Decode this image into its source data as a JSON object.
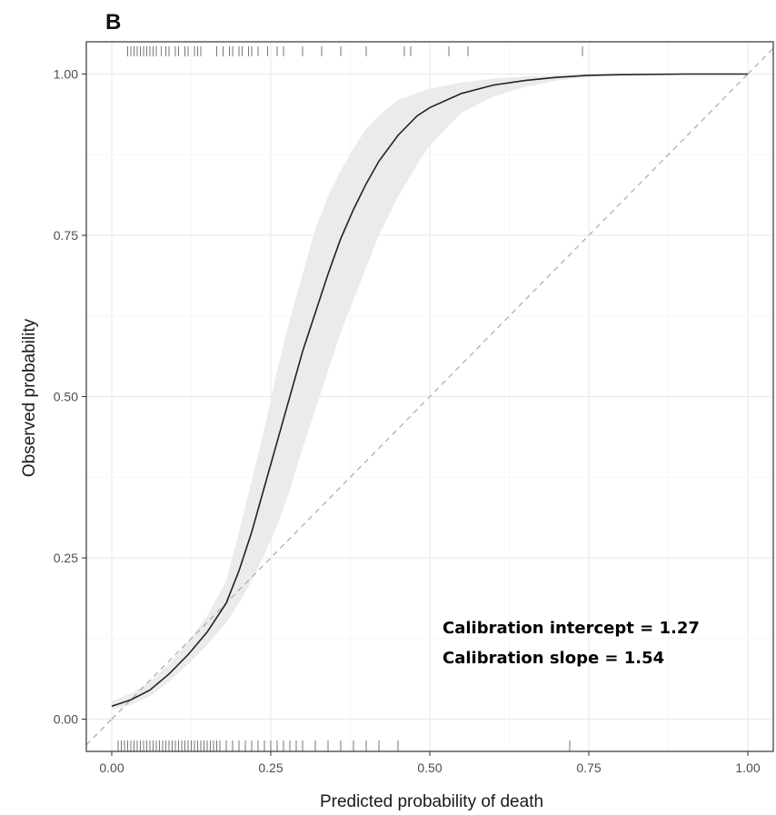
{
  "panel_label": "B",
  "chart_data": {
    "type": "line",
    "xlabel": "Predicted probability of death",
    "ylabel": "Observed probability",
    "xlim": [
      -0.04,
      1.04
    ],
    "ylim": [
      -0.05,
      1.05
    ],
    "x_ticks": [
      0,
      0.25,
      0.5,
      0.75,
      1.0
    ],
    "x_tick_labels": [
      "0.00",
      "0.25",
      "0.50",
      "0.75",
      "1.00"
    ],
    "y_ticks": [
      0,
      0.25,
      0.5,
      0.75,
      1.0
    ],
    "y_tick_labels": [
      "0.00",
      "0.25",
      "0.50",
      "0.75",
      "1.00"
    ],
    "grid": true,
    "reference_line": {
      "from": [
        0,
        0
      ],
      "to": [
        1,
        1
      ],
      "style": "dashed",
      "color": "#aaaaaa"
    },
    "calibration_curve": {
      "x": [
        0,
        0.03,
        0.06,
        0.09,
        0.12,
        0.15,
        0.18,
        0.2,
        0.22,
        0.24,
        0.26,
        0.28,
        0.3,
        0.32,
        0.34,
        0.36,
        0.38,
        0.4,
        0.42,
        0.45,
        0.48,
        0.5,
        0.55,
        0.6,
        0.65,
        0.7,
        0.75,
        0.8,
        0.9,
        1.0
      ],
      "y": [
        0.02,
        0.03,
        0.045,
        0.07,
        0.1,
        0.135,
        0.18,
        0.23,
        0.29,
        0.36,
        0.43,
        0.5,
        0.57,
        0.63,
        0.69,
        0.745,
        0.79,
        0.83,
        0.865,
        0.905,
        0.935,
        0.948,
        0.97,
        0.983,
        0.99,
        0.995,
        0.998,
        0.999,
        1.0,
        1.0
      ],
      "color": "#222222"
    },
    "confidence_band": {
      "x": [
        0,
        0.03,
        0.06,
        0.09,
        0.12,
        0.15,
        0.18,
        0.2,
        0.22,
        0.24,
        0.26,
        0.28,
        0.3,
        0.32,
        0.34,
        0.36,
        0.38,
        0.4,
        0.42,
        0.45,
        0.48,
        0.5,
        0.55,
        0.6,
        0.65,
        0.7,
        0.75,
        0.8,
        0.9,
        1.0
      ],
      "lower": [
        0.015,
        0.022,
        0.035,
        0.058,
        0.085,
        0.115,
        0.15,
        0.18,
        0.215,
        0.255,
        0.3,
        0.355,
        0.42,
        0.48,
        0.54,
        0.6,
        0.65,
        0.7,
        0.75,
        0.81,
        0.86,
        0.89,
        0.94,
        0.965,
        0.98,
        0.99,
        0.996,
        0.998,
        1.0,
        1.0
      ],
      "upper": [
        0.028,
        0.04,
        0.058,
        0.085,
        0.12,
        0.16,
        0.215,
        0.29,
        0.37,
        0.45,
        0.54,
        0.62,
        0.69,
        0.76,
        0.81,
        0.85,
        0.885,
        0.915,
        0.935,
        0.96,
        0.97,
        0.977,
        0.987,
        0.993,
        0.996,
        0.998,
        0.999,
        1.0,
        1.0,
        1.0
      ],
      "color": "#ebebeb"
    },
    "rug_top": [
      0.025,
      0.03,
      0.035,
      0.04,
      0.045,
      0.05,
      0.055,
      0.06,
      0.065,
      0.07,
      0.078,
      0.085,
      0.09,
      0.1,
      0.105,
      0.115,
      0.12,
      0.13,
      0.135,
      0.14,
      0.165,
      0.175,
      0.185,
      0.19,
      0.2,
      0.205,
      0.215,
      0.22,
      0.23,
      0.245,
      0.26,
      0.27,
      0.3,
      0.33,
      0.36,
      0.4,
      0.46,
      0.47,
      0.53,
      0.56,
      0.74
    ],
    "rug_bottom": [
      0.01,
      0.015,
      0.02,
      0.025,
      0.03,
      0.035,
      0.04,
      0.045,
      0.05,
      0.055,
      0.06,
      0.065,
      0.07,
      0.075,
      0.08,
      0.085,
      0.09,
      0.095,
      0.1,
      0.105,
      0.11,
      0.115,
      0.12,
      0.125,
      0.13,
      0.135,
      0.14,
      0.145,
      0.15,
      0.155,
      0.16,
      0.165,
      0.17,
      0.18,
      0.19,
      0.2,
      0.21,
      0.22,
      0.23,
      0.24,
      0.25,
      0.26,
      0.27,
      0.28,
      0.29,
      0.3,
      0.32,
      0.34,
      0.36,
      0.38,
      0.4,
      0.42,
      0.45,
      0.72
    ],
    "annotations": [
      "Calibration intercept = 1.27",
      "Calibration slope = 1.54"
    ]
  }
}
